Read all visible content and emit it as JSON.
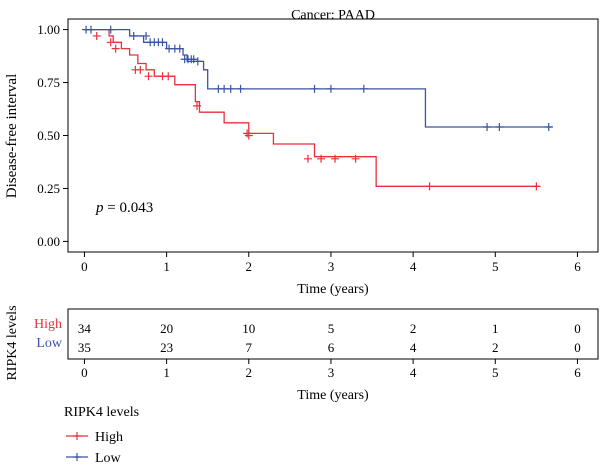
{
  "chart_data": {
    "type": "line",
    "title": "Cancer: PAAD",
    "ylabel": "Disease-free interval",
    "xlabel": "Time (years)",
    "xlim": [
      -0.2,
      6.25
    ],
    "ylim": [
      -0.05,
      1.05
    ],
    "xticks": [
      0,
      1,
      2,
      3,
      4,
      5,
      6
    ],
    "yticks": [
      0.0,
      0.25,
      0.5,
      0.75,
      1.0
    ],
    "ytick_labels": [
      "0.00",
      "0.25",
      "0.50",
      "0.75",
      "1.00"
    ],
    "annotation_italic": "p",
    "annotation_rest": " = 0.043",
    "grid": false,
    "series": [
      {
        "name": "High",
        "color": "#e8313a",
        "steps": [
          [
            0,
            1.0
          ],
          [
            0.3,
            0.97
          ],
          [
            0.35,
            0.94
          ],
          [
            0.45,
            0.91
          ],
          [
            0.55,
            0.88
          ],
          [
            0.65,
            0.84
          ],
          [
            0.75,
            0.81
          ],
          [
            0.85,
            0.78
          ],
          [
            1.1,
            0.74
          ],
          [
            1.35,
            0.66
          ],
          [
            1.4,
            0.61
          ],
          [
            1.7,
            0.56
          ],
          [
            2.0,
            0.51
          ],
          [
            2.3,
            0.46
          ],
          [
            2.8,
            0.4
          ],
          [
            3.55,
            0.26
          ],
          [
            5.55,
            0.26
          ]
        ],
        "censors": [
          [
            0.15,
            0.97
          ],
          [
            0.32,
            0.94
          ],
          [
            0.38,
            0.91
          ],
          [
            0.62,
            0.81
          ],
          [
            0.68,
            0.81
          ],
          [
            0.78,
            0.78
          ],
          [
            0.95,
            0.78
          ],
          [
            1.02,
            0.78
          ],
          [
            1.37,
            0.64
          ],
          [
            1.98,
            0.51
          ],
          [
            2.0,
            0.5
          ],
          [
            2.72,
            0.39
          ],
          [
            2.88,
            0.39
          ],
          [
            3.05,
            0.39
          ],
          [
            3.3,
            0.39
          ],
          [
            4.2,
            0.26
          ],
          [
            5.5,
            0.26
          ]
        ]
      },
      {
        "name": "Low",
        "color": "#3b53a5",
        "steps": [
          [
            0,
            1.0
          ],
          [
            0.55,
            0.97
          ],
          [
            0.72,
            0.94
          ],
          [
            1.0,
            0.91
          ],
          [
            1.2,
            0.88
          ],
          [
            1.25,
            0.85
          ],
          [
            1.45,
            0.81
          ],
          [
            1.5,
            0.72
          ],
          [
            4.15,
            0.72
          ],
          [
            4.15,
            0.54
          ],
          [
            5.7,
            0.54
          ]
        ],
        "censors": [
          [
            0.02,
            1.0
          ],
          [
            0.08,
            1.0
          ],
          [
            0.32,
            1.0
          ],
          [
            0.6,
            0.97
          ],
          [
            0.75,
            0.97
          ],
          [
            0.8,
            0.94
          ],
          [
            0.85,
            0.94
          ],
          [
            0.9,
            0.94
          ],
          [
            0.95,
            0.94
          ],
          [
            1.03,
            0.91
          ],
          [
            1.1,
            0.91
          ],
          [
            1.16,
            0.91
          ],
          [
            1.22,
            0.86
          ],
          [
            1.26,
            0.86
          ],
          [
            1.3,
            0.86
          ],
          [
            1.33,
            0.86
          ],
          [
            1.38,
            0.85
          ],
          [
            1.63,
            0.72
          ],
          [
            1.7,
            0.72
          ],
          [
            1.78,
            0.72
          ],
          [
            1.9,
            0.72
          ],
          [
            2.8,
            0.72
          ],
          [
            3.0,
            0.72
          ],
          [
            3.4,
            0.72
          ],
          [
            4.9,
            0.54
          ],
          [
            5.05,
            0.54
          ],
          [
            5.65,
            0.54
          ]
        ]
      }
    ],
    "risk_table": {
      "ylabel": "RIPK4 levels",
      "xlabel": "Time (years)",
      "times": [
        0,
        1,
        2,
        3,
        4,
        5,
        6
      ],
      "rows": [
        {
          "name": "High",
          "color": "#e8313a",
          "counts": [
            "34",
            "20",
            "10",
            "5",
            "2",
            "1",
            "0"
          ]
        },
        {
          "name": "Low",
          "color": "#3b53a5",
          "counts": [
            "35",
            "23",
            "7",
            "6",
            "4",
            "2",
            "0"
          ]
        }
      ]
    },
    "legend": {
      "title": "RIPK4 levels",
      "items": [
        {
          "name": "High",
          "color": "#e8313a"
        },
        {
          "name": "Low",
          "color": "#3b53a5"
        }
      ]
    }
  }
}
